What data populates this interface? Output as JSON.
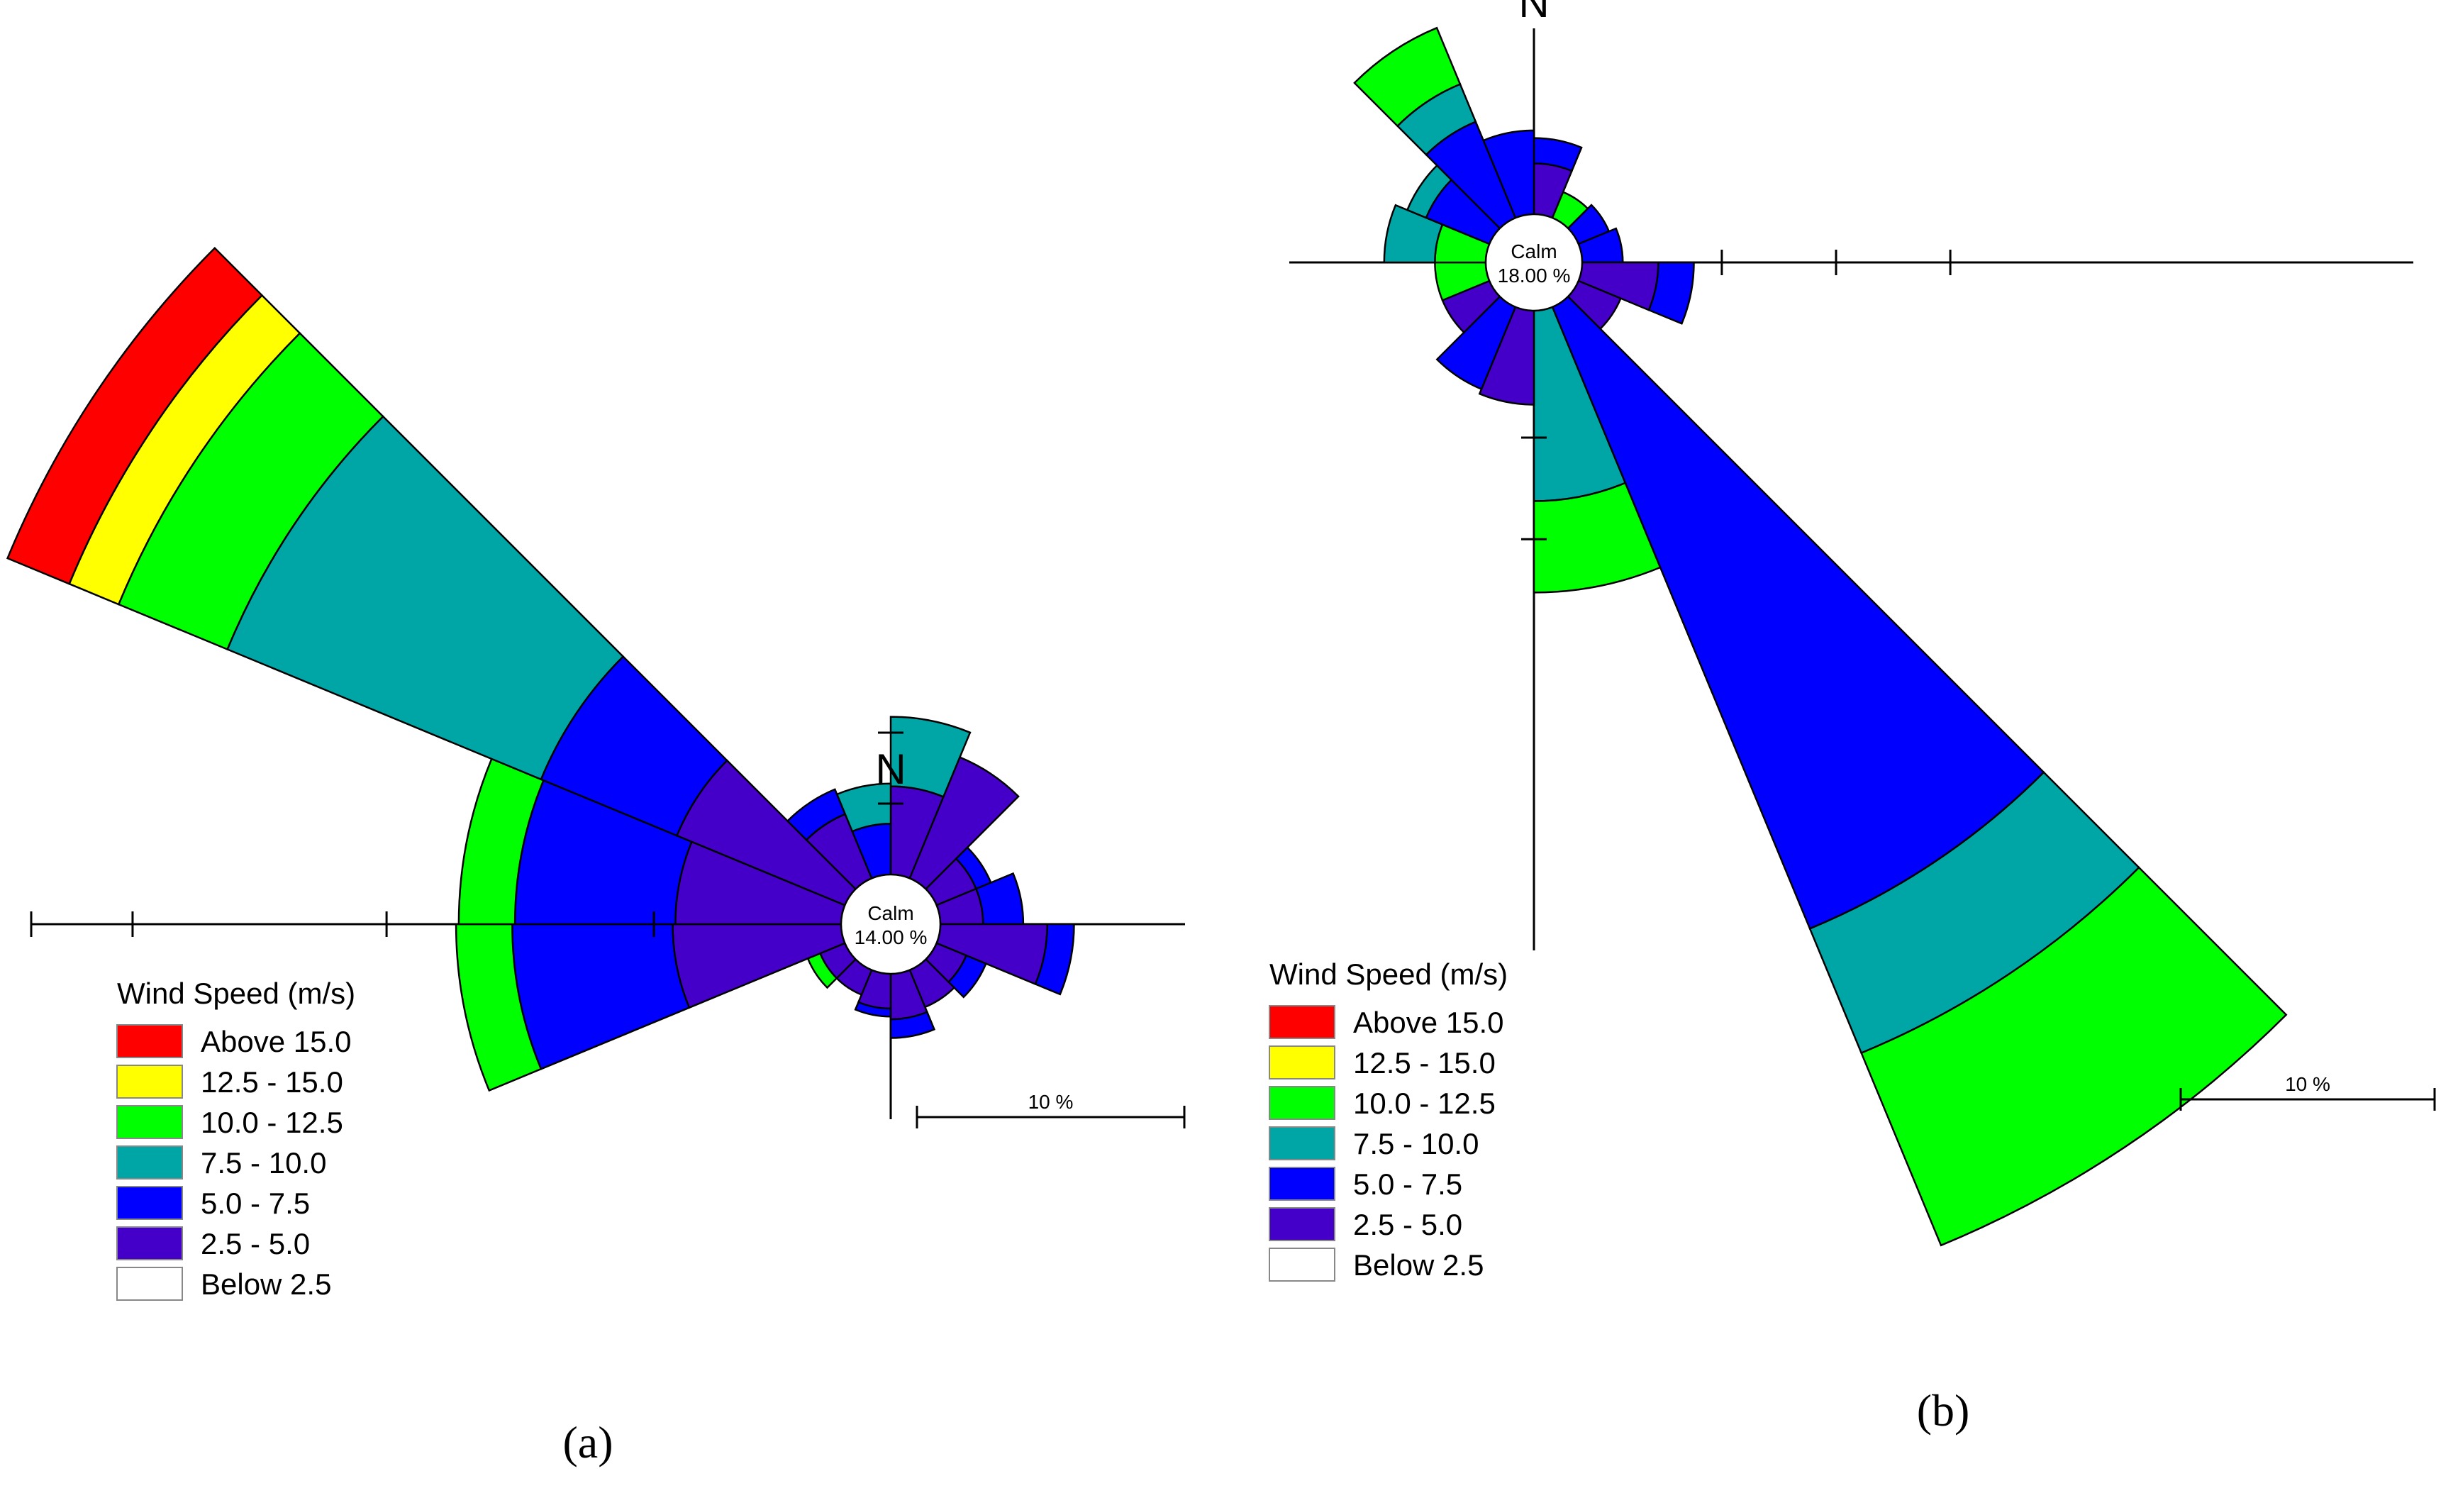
{
  "chart_data": [
    {
      "type": "windrose",
      "panel_label": "a",
      "north_label": "N",
      "calm": {
        "label": "Calm",
        "value_text": "14.00 %",
        "percent": 14.0
      },
      "scale_label": "10 %",
      "legend": {
        "title": "Wind Speed (m/s)",
        "bins": [
          {
            "label": "Above 15.0",
            "color": "#ff0000"
          },
          {
            "label": "12.5 - 15.0",
            "color": "#ffff00"
          },
          {
            "label": "10.0 - 12.5",
            "color": "#00ff00"
          },
          {
            "label": "7.5 - 10.0",
            "color": "#00a5a5"
          },
          {
            "label": "5.0 -   7.5",
            "color": "#0000ff"
          },
          {
            "label": "2.5 -   5.0",
            "color": "#4400c8"
          },
          {
            "label": "Below   2.5",
            "color": "#ffffff"
          }
        ]
      },
      "sectors": [
        {
          "direction_deg": 11.25,
          "cumulative_percent": {
            "2.5-5.0": 3.3,
            "5.0-7.5": 3.3,
            "7.5-10.0": 5.9
          }
        },
        {
          "direction_deg": 33.75,
          "cumulative_percent": {
            "2.5-5.0": 4.9
          }
        },
        {
          "direction_deg": 56.25,
          "cumulative_percent": {
            "2.5-5.0": 1.6,
            "5.0-7.5": 2.2
          }
        },
        {
          "direction_deg": 78.75,
          "cumulative_percent": {
            "2.5-5.0": 1.6,
            "5.0-7.5": 3.1
          }
        },
        {
          "direction_deg": 101.25,
          "cumulative_percent": {
            "2.5-5.0": 4.0,
            "5.0-7.5": 5.0
          }
        },
        {
          "direction_deg": 123.75,
          "cumulative_percent": {
            "2.5-5.0": 1.2,
            "5.0-7.5": 2.0
          }
        },
        {
          "direction_deg": 146.25,
          "cumulative_percent": {
            "2.5-5.0": 1.5
          }
        },
        {
          "direction_deg": 168.75,
          "cumulative_percent": {
            "2.5-5.0": 1.7,
            "5.0-7.5": 2.4
          }
        },
        {
          "direction_deg": 191.25,
          "cumulative_percent": {
            "2.5-5.0": 1.3,
            "5.0-7.5": 1.6
          }
        },
        {
          "direction_deg": 213.75,
          "cumulative_percent": {
            "2.5-5.0": 1.0
          }
        },
        {
          "direction_deg": 236.25,
          "cumulative_percent": {
            "2.5-5.0": 1.0,
            "10.0-12.5": 1.5
          }
        },
        {
          "direction_deg": 258.75,
          "cumulative_percent": {
            "2.5-5.0": 6.3,
            "5.0-7.5": 12.3,
            "10.0-12.5": 14.4
          }
        },
        {
          "direction_deg": 281.25,
          "cumulative_percent": {
            "2.5-5.0": 6.2,
            "5.0-7.5": 12.2,
            "10.0-12.5": 14.3
          }
        },
        {
          "direction_deg": 303.75,
          "cumulative_percent": {
            "2.5-5.0": 6.8,
            "5.0-7.5": 12.3,
            "7.5-10.0": 25.0,
            "10.0-12.5": 29.4,
            "12.5-15.0": 31.4,
            "above-15.0": 33.9
          }
        },
        {
          "direction_deg": 326.25,
          "cumulative_percent": {
            "2.5-5.0": 2.6,
            "5.0-7.5": 3.6
          }
        },
        {
          "direction_deg": 348.75,
          "cumulative_percent": {
            "5.0-7.5": 1.9,
            "7.5-10.0": 3.4
          }
        }
      ]
    },
    {
      "type": "windrose",
      "panel_label": "b",
      "north_label": "N",
      "calm": {
        "label": "Calm",
        "value_text": "18.00 %",
        "percent": 18.0
      },
      "scale_label": "10 %",
      "legend": {
        "title": "Wind Speed (m/s)",
        "bins": [
          {
            "label": "Above 15.0",
            "color": "#ff0000"
          },
          {
            "label": "12.5 - 15.0",
            "color": "#ffff00"
          },
          {
            "label": "10.0 - 12.5",
            "color": "#00ff00"
          },
          {
            "label": "7.5 - 10.0",
            "color": "#00a5a5"
          },
          {
            "label": "5.0 -   7.5",
            "color": "#0000ff"
          },
          {
            "label": "2.5 -   5.0",
            "color": "#4400c8"
          },
          {
            "label": "Below   2.5",
            "color": "#ffffff"
          }
        ]
      },
      "sectors": [
        {
          "direction_deg": 11.25,
          "cumulative_percent": {
            "2.5-5.0": 2.0,
            "5.0-7.5": 3.0
          }
        },
        {
          "direction_deg": 33.75,
          "cumulative_percent": {
            "10.0-12.5": 1.1
          }
        },
        {
          "direction_deg": 56.25,
          "cumulative_percent": {
            "5.0-7.5": 1.3
          }
        },
        {
          "direction_deg": 78.75,
          "cumulative_percent": {
            "5.0-7.5": 1.6
          }
        },
        {
          "direction_deg": 101.25,
          "cumulative_percent": {
            "2.5-5.0": 3.0,
            "5.0-7.5": 4.4
          }
        },
        {
          "direction_deg": 123.75,
          "cumulative_percent": {
            "2.5-5.0": 1.8
          }
        },
        {
          "direction_deg": 146.25,
          "cumulative_percent": {
            "5.0-7.5": 26.5,
            "7.5-10.0": 31.8,
            "10.0-12.5": 40.0
          }
        },
        {
          "direction_deg": 168.75,
          "cumulative_percent": {
            "7.5-10.0": 7.5,
            "10.0-12.5": 11.1
          }
        },
        {
          "direction_deg": 191.25,
          "cumulative_percent": {
            "2.5-5.0": 3.7
          }
        },
        {
          "direction_deg": 213.75,
          "cumulative_percent": {
            "5.0-7.5": 3.5
          }
        },
        {
          "direction_deg": 236.25,
          "cumulative_percent": {
            "2.5-5.0": 2.0
          }
        },
        {
          "direction_deg": 258.75,
          "cumulative_percent": {
            "10.0-12.5": 2.0
          }
        },
        {
          "direction_deg": 281.25,
          "cumulative_percent": {
            "10.0-12.5": 2.0,
            "7.5-10.0": 4.0
          }
        },
        {
          "direction_deg": 303.75,
          "cumulative_percent": {
            "5.0-7.5": 2.7,
            "7.5-10.0": 3.5
          }
        },
        {
          "direction_deg": 326.25,
          "cumulative_percent": {
            "5.0-7.5": 4.1,
            "7.5-10.0": 5.7,
            "10.0-12.5": 8.1
          }
        },
        {
          "direction_deg": 348.75,
          "cumulative_percent": {
            "5.0-7.5": 3.3
          }
        }
      ]
    }
  ]
}
